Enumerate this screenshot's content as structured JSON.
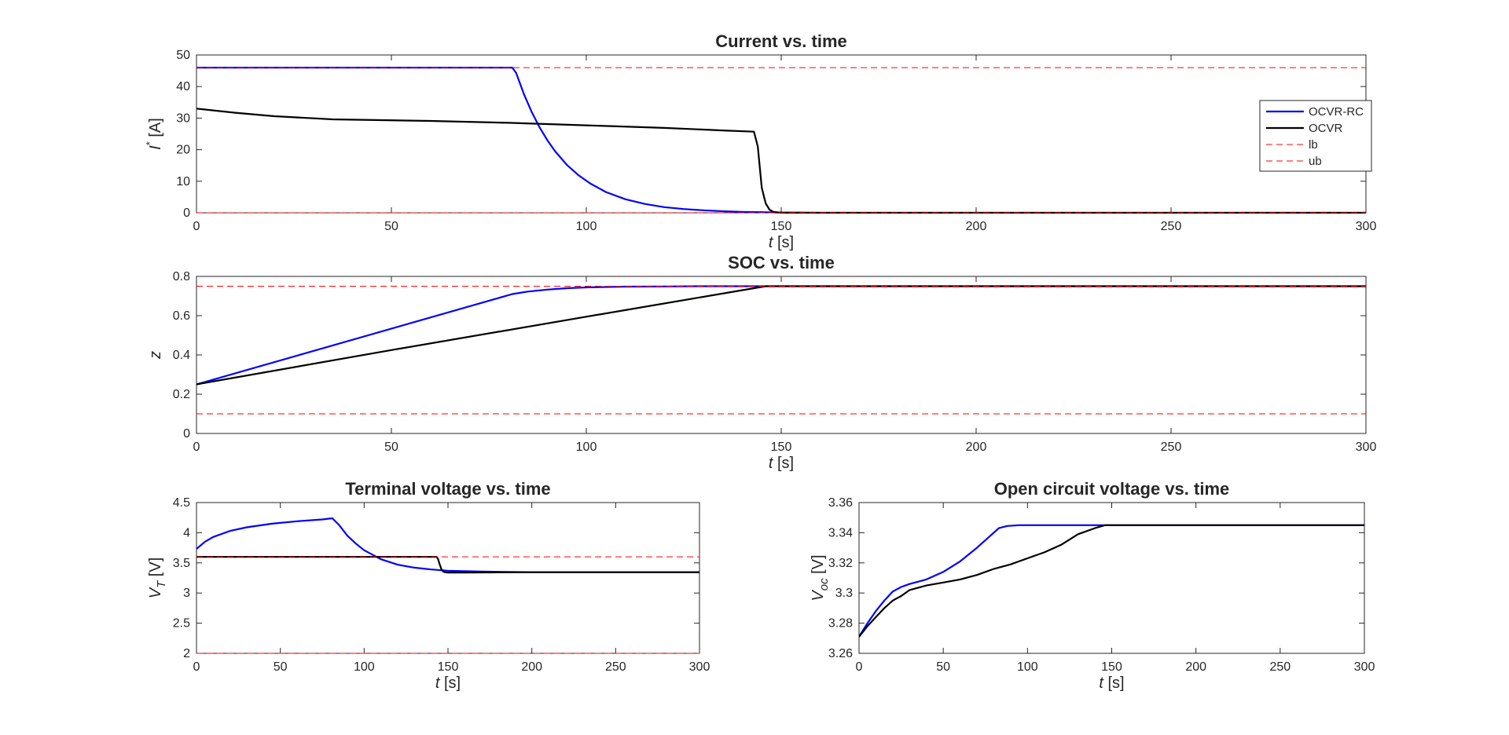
{
  "colors": {
    "ocvr_rc": "#0000ff",
    "ocvr": "#000000",
    "bounds": "#ff0000",
    "axes": "#262626"
  },
  "chart_data": [
    {
      "type": "line",
      "title": "Current vs. time",
      "xlabel_var": "t",
      "xlabel_unit": " [s]",
      "ylabel_var": "I",
      "ylabel_sup": "*",
      "ylabel_unit": " [A]",
      "xlim": [
        0,
        300
      ],
      "ylim": [
        0,
        50
      ],
      "xticks": [
        0,
        50,
        100,
        150,
        200,
        250,
        300
      ],
      "yticks": [
        0,
        10,
        20,
        30,
        40,
        50
      ],
      "legend": {
        "placement": "right",
        "entries": [
          "OCVR-RC",
          "OCVR",
          "lb",
          "ub"
        ]
      },
      "series": [
        {
          "name": "OCVR-RC",
          "style": "solid",
          "color": "#0000ff",
          "x": [
            0,
            81,
            82,
            84,
            86,
            88,
            90,
            92,
            95,
            98,
            101,
            105,
            110,
            115,
            120,
            125,
            130,
            135,
            140,
            150,
            160,
            300
          ],
          "y": [
            46,
            46,
            44.3,
            37.6,
            31.9,
            27.1,
            23.0,
            19.5,
            15.2,
            11.9,
            9.3,
            6.6,
            4.3,
            2.8,
            1.8,
            1.2,
            0.8,
            0.5,
            0.3,
            0.1,
            0,
            0
          ]
        },
        {
          "name": "OCVR",
          "style": "solid",
          "color": "#000000",
          "x": [
            0,
            10,
            20,
            35,
            60,
            80,
            100,
            120,
            135,
            143,
            144,
            145,
            146,
            147,
            148,
            150,
            300
          ],
          "y": [
            33,
            31.7,
            30.6,
            29.6,
            29.1,
            28.5,
            27.7,
            26.9,
            26.1,
            25.7,
            21,
            8,
            3,
            1,
            0.3,
            0,
            0
          ]
        },
        {
          "name": "lb",
          "style": "dashed",
          "color": "#ff0000",
          "x": [
            0,
            300
          ],
          "y": [
            0,
            0
          ]
        },
        {
          "name": "ub",
          "style": "dashed",
          "color": "#ff0000",
          "x": [
            0,
            300
          ],
          "y": [
            46,
            46
          ]
        }
      ]
    },
    {
      "type": "line",
      "title": "SOC vs. time",
      "xlabel_var": "t",
      "xlabel_unit": " [s]",
      "ylabel_var": "z",
      "ylabel_sup": "",
      "ylabel_unit": "",
      "xlim": [
        0,
        300
      ],
      "ylim": [
        0,
        0.8
      ],
      "xticks": [
        0,
        50,
        100,
        150,
        200,
        250,
        300
      ],
      "yticks": [
        0,
        0.2,
        0.4,
        0.6,
        0.8
      ],
      "series": [
        {
          "name": "OCVR-RC",
          "style": "solid",
          "color": "#0000ff",
          "x": [
            0,
            81,
            85,
            90,
            95,
            100,
            110,
            120,
            130,
            145,
            300
          ],
          "y": [
            0.25,
            0.71,
            0.723,
            0.733,
            0.74,
            0.744,
            0.748,
            0.749,
            0.75,
            0.75,
            0.75
          ]
        },
        {
          "name": "OCVR",
          "style": "solid",
          "color": "#000000",
          "x": [
            0,
            50,
            100,
            146,
            300
          ],
          "y": [
            0.25,
            0.425,
            0.595,
            0.75,
            0.75
          ]
        },
        {
          "name": "lb",
          "style": "dashed",
          "color": "#ff0000",
          "x": [
            0,
            300
          ],
          "y": [
            0.1,
            0.1
          ]
        },
        {
          "name": "ub",
          "style": "dashed",
          "color": "#ff0000",
          "x": [
            0,
            300
          ],
          "y": [
            0.75,
            0.75
          ]
        }
      ]
    },
    {
      "type": "line",
      "title": "Terminal voltage vs. time",
      "xlabel_var": "t",
      "xlabel_unit": " [s]",
      "ylabel_var": "V",
      "ylabel_sub": "T",
      "ylabel_unit": " [V]",
      "xlim": [
        0,
        300
      ],
      "ylim": [
        2,
        4.5
      ],
      "xticks": [
        0,
        50,
        100,
        150,
        200,
        250,
        300
      ],
      "yticks": [
        2,
        2.5,
        3,
        3.5,
        4,
        4.5
      ],
      "series": [
        {
          "name": "OCVR-RC",
          "style": "solid",
          "color": "#0000ff",
          "x": [
            0,
            5,
            10,
            20,
            30,
            45,
            60,
            75,
            81,
            85,
            90,
            95,
            100,
            110,
            120,
            130,
            140,
            150,
            170,
            200,
            300
          ],
          "y": [
            3.73,
            3.85,
            3.93,
            4.03,
            4.09,
            4.15,
            4.19,
            4.22,
            4.24,
            4.13,
            3.95,
            3.82,
            3.71,
            3.56,
            3.47,
            3.42,
            3.39,
            3.37,
            3.355,
            3.345,
            3.345
          ]
        },
        {
          "name": "OCVR",
          "style": "solid",
          "color": "#000000",
          "x": [
            0,
            143,
            144,
            145,
            146,
            147,
            148,
            150,
            160,
            200,
            300
          ],
          "y": [
            3.6,
            3.6,
            3.57,
            3.48,
            3.4,
            3.36,
            3.345,
            3.34,
            3.34,
            3.345,
            3.345
          ]
        },
        {
          "name": "lb",
          "style": "dashed",
          "color": "#ff0000",
          "x": [
            0,
            300
          ],
          "y": [
            2,
            2
          ]
        },
        {
          "name": "ub",
          "style": "dashed",
          "color": "#ff0000",
          "x": [
            0,
            300
          ],
          "y": [
            3.6,
            3.6
          ]
        }
      ]
    },
    {
      "type": "line",
      "title": "Open circuit voltage vs. time",
      "xlabel_var": "t",
      "xlabel_unit": " [s]",
      "ylabel_var": "V",
      "ylabel_sub": "oc",
      "ylabel_unit": " [V]",
      "xlim": [
        0,
        300
      ],
      "ylim": [
        3.26,
        3.36
      ],
      "xticks": [
        0,
        50,
        100,
        150,
        200,
        250,
        300
      ],
      "yticks": [
        3.26,
        3.28,
        3.3,
        3.32,
        3.34,
        3.36
      ],
      "ytick_labels": [
        "3.26",
        "3.28",
        "3.3",
        "3.32",
        "3.34",
        "3.36"
      ],
      "series": [
        {
          "name": "OCVR-RC",
          "style": "solid",
          "color": "#0000ff",
          "x": [
            0,
            5,
            10,
            15,
            20,
            25,
            30,
            40,
            50,
            60,
            70,
            78,
            83,
            88,
            95,
            110,
            130,
            145,
            300
          ],
          "y": [
            3.271,
            3.28,
            3.288,
            3.295,
            3.301,
            3.304,
            3.306,
            3.309,
            3.314,
            3.321,
            3.33,
            3.338,
            3.343,
            3.3445,
            3.345,
            3.345,
            3.345,
            3.345,
            3.345
          ]
        },
        {
          "name": "OCVR",
          "style": "solid",
          "color": "#000000",
          "x": [
            0,
            5,
            10,
            15,
            20,
            25,
            30,
            40,
            50,
            60,
            70,
            80,
            90,
            100,
            110,
            120,
            130,
            140,
            146,
            300
          ],
          "y": [
            3.271,
            3.278,
            3.284,
            3.29,
            3.295,
            3.298,
            3.302,
            3.305,
            3.307,
            3.309,
            3.312,
            3.316,
            3.319,
            3.323,
            3.327,
            3.332,
            3.339,
            3.343,
            3.345,
            3.345
          ]
        }
      ]
    }
  ]
}
